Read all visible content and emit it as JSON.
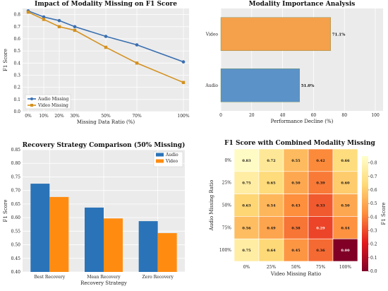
{
  "chart_data": [
    {
      "type": "line",
      "title": "Impact of Modality Missing on F1 Score",
      "xlabel": "Missing Data Ratio (%)",
      "ylabel": "F1 Score",
      "x_tick_labels": [
        "0%",
        "10%",
        "20%",
        "30%",
        "50%",
        "70%",
        "100%"
      ],
      "x": [
        0,
        10,
        20,
        30,
        50,
        70,
        100
      ],
      "y_ticks": [
        0.0,
        0.1,
        0.2,
        0.3,
        0.4,
        0.5,
        0.6,
        0.7,
        0.8
      ],
      "ylim": [
        0,
        0.85
      ],
      "grid": true,
      "legend": "lower-left",
      "series": [
        {
          "name": "Audio Missing",
          "color": "#3a6fb0",
          "values": [
            0.83,
            0.78,
            0.75,
            0.7,
            0.62,
            0.55,
            0.41
          ]
        },
        {
          "name": "Video Missing",
          "color": "#d4911f",
          "values": [
            0.82,
            0.76,
            0.7,
            0.67,
            0.53,
            0.4,
            0.24
          ]
        }
      ]
    },
    {
      "type": "bar",
      "orientation": "horizontal",
      "title": "Modality Importance Analysis",
      "xlabel": "Performance Decline (%)",
      "categories": [
        "Video",
        "Audio"
      ],
      "values": [
        71.1,
        51.0
      ],
      "value_labels": [
        "71.1%",
        "51.0%"
      ],
      "colors": [
        "#f5a04a",
        "#5b93c8"
      ],
      "x_ticks": [
        0,
        20,
        40,
        60,
        80,
        100
      ],
      "xlim": [
        0,
        105
      ],
      "grid": true
    },
    {
      "type": "bar",
      "title": "Recovery Strategy Comparison (50% Missing)",
      "xlabel": "Recovery Strategy",
      "ylabel": "F1 Score",
      "categories": [
        "Best Recovery",
        "Mean Recovery",
        "Zero Recovery"
      ],
      "y_ticks": [
        0.4,
        0.45,
        0.5,
        0.55,
        0.6,
        0.65,
        0.7,
        0.75,
        0.8,
        0.85
      ],
      "ylim": [
        0.4,
        0.85
      ],
      "grid": true,
      "legend": "top-right",
      "series": [
        {
          "name": "Audio",
          "color": "#2a73b8",
          "values": [
            0.725,
            0.637,
            0.587
          ]
        },
        {
          "name": "Video",
          "color": "#ff8c10",
          "values": [
            0.676,
            0.597,
            0.543
          ]
        }
      ]
    },
    {
      "type": "heatmap",
      "title": "F1 Score with Combined Modality Missing",
      "xlabel": "Video Missing Ratio",
      "ylabel": "Audio Missing Ratio",
      "x_tick_labels": [
        "0%",
        "25%",
        "50%",
        "75%",
        "100%"
      ],
      "y_tick_labels": [
        "0%",
        "25%",
        "50%",
        "75%",
        "100%"
      ],
      "values": [
        [
          0.83,
          0.72,
          0.55,
          0.42,
          0.66
        ],
        [
          0.75,
          0.65,
          0.5,
          0.39,
          0.6
        ],
        [
          0.63,
          0.54,
          0.43,
          0.33,
          0.5
        ],
        [
          0.56,
          0.49,
          0.38,
          0.29,
          0.44
        ],
        [
          0.75,
          0.64,
          0.45,
          0.36,
          0.0
        ]
      ],
      "value_labels": [
        [
          "0.83",
          "0.72",
          "0.55",
          "0.42",
          "0.66"
        ],
        [
          "0.75",
          "0.65",
          "0.50",
          "0.39",
          "0.60"
        ],
        [
          "0.63",
          "0.54",
          "0.43",
          "0.33",
          "0.50"
        ],
        [
          "0.56",
          "0.49",
          "0.38",
          "0.29",
          "0.44"
        ],
        [
          "0.75",
          "0.64",
          "0.45",
          "0.36",
          "0.00"
        ]
      ],
      "colorbar": {
        "label": "F1 Score",
        "range": [
          0,
          0.85
        ],
        "ticks": [
          0.0,
          0.1,
          0.2,
          0.3,
          0.4,
          0.5,
          0.6,
          0.7,
          0.8
        ]
      },
      "colormap": "YlOrRd reversed"
    }
  ]
}
